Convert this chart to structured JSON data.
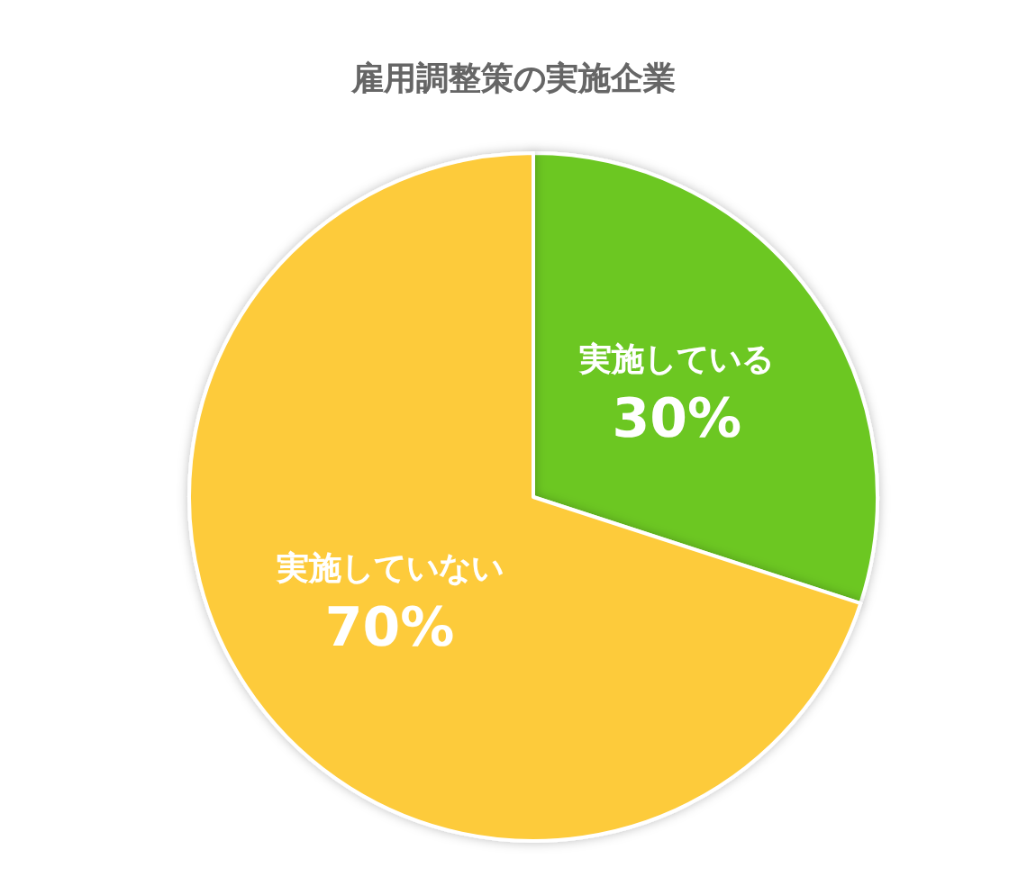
{
  "chart_data": {
    "type": "pie",
    "title": "雇用調整策の実施企業",
    "categories": [
      "実施している",
      "実施していない"
    ],
    "values": [
      30,
      70
    ],
    "value_labels": [
      "30%",
      "70%"
    ],
    "colors": [
      "#6cc724",
      "#fdcb3a"
    ]
  }
}
